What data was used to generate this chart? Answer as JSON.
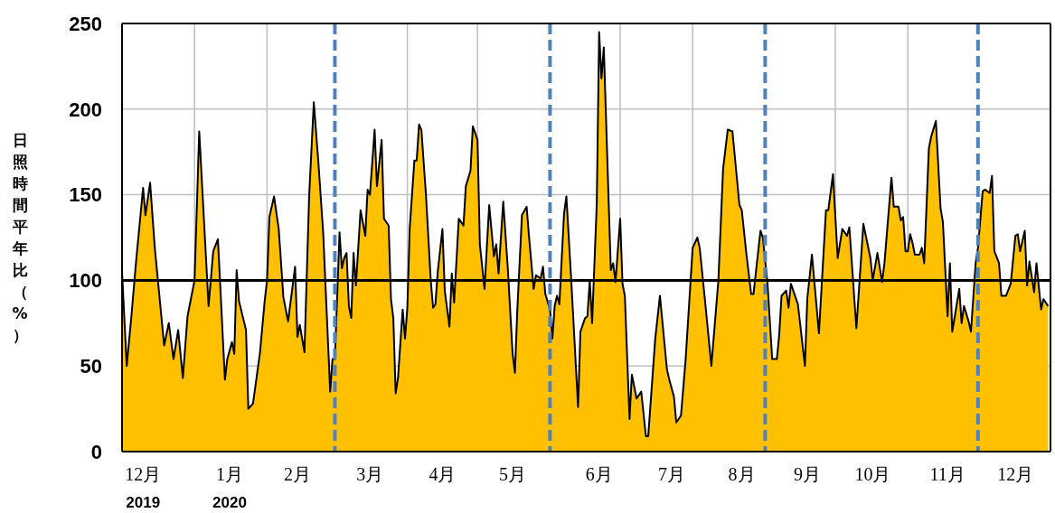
{
  "chart_data": {
    "type": "area",
    "ylabel": "日照時間平年比（%）",
    "ylim": [
      0,
      250
    ],
    "yticks": [
      0,
      50,
      100,
      150,
      200,
      250
    ],
    "xlim": [
      "2019-12-01",
      "2021-01-01"
    ],
    "xticks": [
      {
        "value": "2019-12-01",
        "label": null
      },
      {
        "value": "2020-01-01",
        "label": null
      },
      {
        "value": "2020-02-01",
        "label": null
      },
      {
        "value": "2020-04-01",
        "label": null
      },
      {
        "value": "2020-05-01",
        "label": null
      },
      {
        "value": "2020-07-01",
        "label": null
      },
      {
        "value": "2020-08-01",
        "label": null
      },
      {
        "value": "2020-10-01",
        "label": null
      },
      {
        "value": "2020-11-01",
        "label": null
      },
      {
        "value": "2021-01-01",
        "label": null
      },
      {
        "value": "2019-12-10",
        "label": "12月\n2019"
      },
      {
        "value": "2020-01-16",
        "label": "1月\n2020"
      },
      {
        "value": "2020-02-14",
        "label": "2月"
      },
      {
        "value": "2020-03-16",
        "label": "3月"
      },
      {
        "value": "2020-04-16",
        "label": "4月"
      },
      {
        "value": "2020-05-16",
        "label": "5月"
      },
      {
        "value": "2020-06-22",
        "label": "6月"
      },
      {
        "value": "2020-07-23",
        "label": "7月"
      },
      {
        "value": "2020-08-22",
        "label": "8月"
      },
      {
        "value": "2020-09-19",
        "label": "9月"
      },
      {
        "value": "2020-10-17",
        "label": "10月"
      },
      {
        "value": "2020-11-18",
        "label": "11月"
      },
      {
        "value": "2020-12-17",
        "label": "12月"
      }
    ],
    "grid": true,
    "ref_lines": [
      {
        "axis": "y",
        "value": 100,
        "color": "#000000",
        "line_style": "solid"
      },
      {
        "axis": "x",
        "value": "2020-03-01",
        "color": "#4f81bd",
        "line_style": "dashed"
      },
      {
        "axis": "x",
        "value": "2020-06-01",
        "color": "#4f81bd",
        "line_style": "dashed"
      },
      {
        "axis": "x",
        "value": "2020-09-01",
        "color": "#4f81bd",
        "line_style": "dashed"
      },
      {
        "axis": "x",
        "value": "2020-12-01",
        "color": "#4f81bd",
        "line_style": "dashed"
      }
    ],
    "series": [
      {
        "color": "#ffc000",
        "x": [
          "2019-12-01",
          "2019-12-03",
          "2019-12-05",
          "2019-12-07",
          "2019-12-10",
          "2019-12-11",
          "2019-12-13",
          "2019-12-15",
          "2019-12-19",
          "2019-12-21",
          "2019-12-23",
          "2019-12-25",
          "2019-12-27",
          "2019-12-29",
          "2020-01-01",
          "2020-01-03",
          "2020-01-07",
          "2020-01-09",
          "2020-01-11",
          "2020-01-14",
          "2020-01-15",
          "2020-01-17",
          "2020-01-18",
          "2020-01-19",
          "2020-01-20",
          "2020-01-23",
          "2020-01-24",
          "2020-01-26",
          "2020-01-29",
          "2020-01-31",
          "2020-02-01",
          "2020-02-02",
          "2020-02-04",
          "2020-02-06",
          "2020-02-08",
          "2020-02-10",
          "2020-02-13",
          "2020-02-14",
          "2020-02-15",
          "2020-02-17",
          "2020-02-19",
          "2020-02-21",
          "2020-02-23",
          "2020-02-25",
          "2020-02-28",
          "2020-02-29",
          "2020-03-01",
          "2020-03-03",
          "2020-03-04",
          "2020-03-05",
          "2020-03-06",
          "2020-03-07",
          "2020-03-08",
          "2020-03-09",
          "2020-03-10",
          "2020-03-12",
          "2020-03-14",
          "2020-03-15",
          "2020-03-16",
          "2020-03-18",
          "2020-03-19",
          "2020-03-21",
          "2020-03-22",
          "2020-03-24",
          "2020-03-25",
          "2020-03-26",
          "2020-03-27",
          "2020-03-28",
          "2020-03-30",
          "2020-03-31",
          "2020-04-01",
          "2020-04-02",
          "2020-04-04",
          "2020-04-05",
          "2020-04-06",
          "2020-04-07",
          "2020-04-09",
          "2020-04-11",
          "2020-04-12",
          "2020-04-13",
          "2020-04-14",
          "2020-04-16",
          "2020-04-17",
          "2020-04-19",
          "2020-04-20",
          "2020-04-21",
          "2020-04-23",
          "2020-04-25",
          "2020-04-26",
          "2020-04-28",
          "2020-04-29",
          "2020-05-01",
          "2020-05-02",
          "2020-05-04",
          "2020-05-06",
          "2020-05-08",
          "2020-05-09",
          "2020-05-10",
          "2020-05-12",
          "2020-05-14",
          "2020-05-16",
          "2020-05-17",
          "2020-05-18",
          "2020-05-20",
          "2020-05-22",
          "2020-05-23",
          "2020-05-25",
          "2020-05-26",
          "2020-05-28",
          "2020-05-29",
          "2020-05-30",
          "2020-06-01",
          "2020-06-02",
          "2020-06-03",
          "2020-06-04",
          "2020-06-05",
          "2020-06-07",
          "2020-06-08",
          "2020-06-10",
          "2020-06-13",
          "2020-06-14",
          "2020-06-16",
          "2020-06-17",
          "2020-06-18",
          "2020-06-19",
          "2020-06-21",
          "2020-06-22",
          "2020-06-23",
          "2020-06-24",
          "2020-06-27",
          "2020-06-28",
          "2020-06-29",
          "2020-07-01",
          "2020-07-02",
          "2020-07-03",
          "2020-07-05",
          "2020-07-06",
          "2020-07-08",
          "2020-07-10",
          "2020-07-12",
          "2020-07-13",
          "2020-07-16",
          "2020-07-18",
          "2020-07-21",
          "2020-07-22",
          "2020-07-24",
          "2020-07-25",
          "2020-07-27",
          "2020-07-29",
          "2020-08-01",
          "2020-08-03",
          "2020-08-04",
          "2020-08-06",
          "2020-08-09",
          "2020-08-12",
          "2020-08-14",
          "2020-08-16",
          "2020-08-18",
          "2020-08-21",
          "2020-08-22",
          "2020-08-24",
          "2020-08-26",
          "2020-08-27",
          "2020-08-30",
          "2020-08-31",
          "2020-09-02",
          "2020-09-04",
          "2020-09-06",
          "2020-09-07",
          "2020-09-08",
          "2020-09-10",
          "2020-09-11",
          "2020-09-12",
          "2020-09-15",
          "2020-09-18",
          "2020-09-19",
          "2020-09-21",
          "2020-09-24",
          "2020-09-27",
          "2020-09-28",
          "2020-09-30",
          "2020-10-02",
          "2020-10-04",
          "2020-10-06",
          "2020-10-07",
          "2020-10-10",
          "2020-10-13",
          "2020-10-16",
          "2020-10-17",
          "2020-10-19",
          "2020-10-21",
          "2020-10-22",
          "2020-10-25",
          "2020-10-26",
          "2020-10-28",
          "2020-10-29",
          "2020-10-30",
          "2020-10-31",
          "2020-11-01",
          "2020-11-02",
          "2020-11-03",
          "2020-11-04",
          "2020-11-06",
          "2020-11-07",
          "2020-11-08",
          "2020-11-10",
          "2020-11-11",
          "2020-11-13",
          "2020-11-15",
          "2020-11-16",
          "2020-11-18",
          "2020-11-19",
          "2020-11-20",
          "2020-11-23",
          "2020-11-24",
          "2020-11-25",
          "2020-11-27",
          "2020-11-28",
          "2020-11-30",
          "2020-12-01",
          "2020-12-03",
          "2020-12-04",
          "2020-12-06",
          "2020-12-07",
          "2020-12-08",
          "2020-12-10",
          "2020-12-11",
          "2020-12-13",
          "2020-12-15",
          "2020-12-17",
          "2020-12-18",
          "2020-12-19",
          "2020-12-21",
          "2020-12-22",
          "2020-12-23",
          "2020-12-25",
          "2020-12-26",
          "2020-12-28",
          "2020-12-29",
          "2020-12-31"
        ],
        "values": [
          105,
          50,
          79,
          111,
          154,
          138,
          157,
          119,
          62,
          75,
          54,
          71,
          43,
          79,
          100,
          187,
          85,
          117,
          124,
          42,
          54,
          64,
          57,
          106,
          88,
          71,
          25,
          28,
          58,
          88,
          100,
          137,
          149,
          130,
          90,
          76,
          108,
          67,
          74,
          58,
          149,
          204,
          168,
          128,
          35,
          54,
          54,
          128,
          107,
          113,
          116,
          85,
          78,
          116,
          97,
          141,
          126,
          153,
          150,
          188,
          155,
          182,
          136,
          132,
          89,
          78,
          34,
          43,
          83,
          66,
          84,
          130,
          170,
          170,
          191,
          188,
          149,
          100,
          84,
          86,
          105,
          130,
          94,
          73,
          104,
          87,
          136,
          132,
          155,
          164,
          190,
          182,
          121,
          95,
          144,
          114,
          121,
          104,
          146,
          106,
          57,
          46,
          82,
          138,
          143,
          126,
          95,
          103,
          101,
          108,
          92,
          83,
          66,
          85,
          91,
          86,
          139,
          149,
          102,
          26,
          70,
          78,
          79,
          100,
          75,
          145,
          245,
          218,
          236,
          106,
          110,
          99,
          136,
          98,
          91,
          19,
          45,
          31,
          35,
          9,
          9,
          66,
          91,
          48,
          42,
          32,
          17,
          21,
          54,
          119,
          125,
          119,
          92,
          50,
          100,
          165,
          188,
          187,
          144,
          141,
          115,
          92,
          92,
          129,
          125,
          98,
          54,
          54,
          68,
          91,
          94,
          84,
          98,
          86,
          50,
          89,
          115,
          69,
          141,
          141,
          162,
          113,
          130,
          126,
          131,
          72,
          133,
          113,
          100,
          116,
          99,
          110,
          160,
          143,
          143,
          135,
          137,
          117,
          117,
          127,
          122,
          115,
          115,
          119,
          110,
          177,
          184,
          193,
          142,
          134,
          79,
          110,
          70,
          95,
          75,
          85,
          76,
          70,
          110,
          119,
          152,
          153,
          151,
          161,
          117,
          110,
          91,
          91,
          98,
          126,
          127,
          117,
          129,
          97,
          111,
          93,
          110,
          83,
          89,
          85
        ]
      }
    ]
  }
}
